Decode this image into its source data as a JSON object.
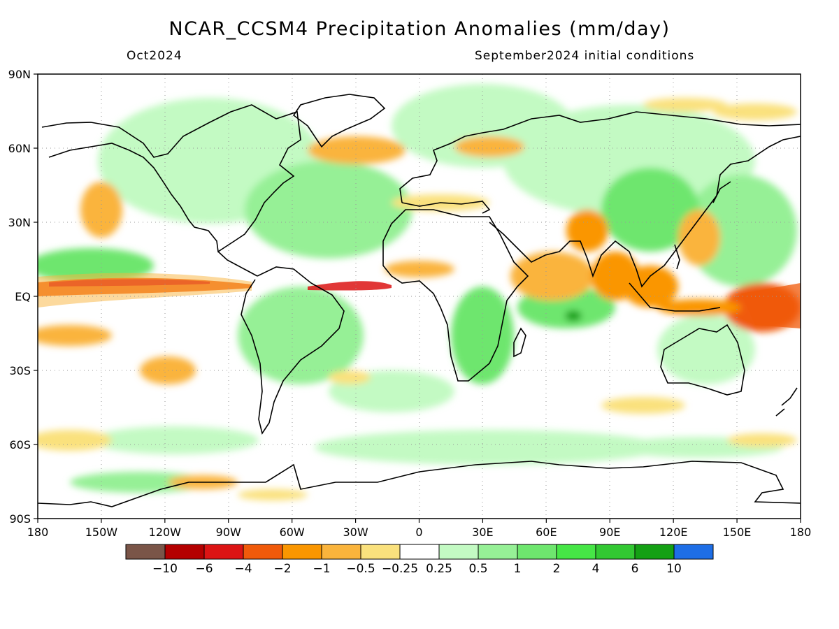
{
  "title": "NCAR_CCSM4 Precipitation Anomalies (mm/day)",
  "valid_month": "Oct2024",
  "init_label": "September2024 initial conditions",
  "map": {
    "lat_labels": [
      "90N",
      "60N",
      "30N",
      "EQ",
      "30S",
      "60S",
      "90S"
    ],
    "lon_labels": [
      "180",
      "150W",
      "120W",
      "90W",
      "60W",
      "30W",
      "0",
      "30E",
      "60E",
      "90E",
      "120E",
      "150E",
      "180"
    ],
    "lat_ticks": [
      90,
      60,
      30,
      0,
      -30,
      -60,
      -90
    ],
    "lon_ticks": [
      -180,
      -150,
      -120,
      -90,
      -60,
      -30,
      0,
      30,
      60,
      90,
      120,
      150,
      180
    ]
  },
  "colorbar": {
    "colors": [
      "#7a5548",
      "#b40000",
      "#dc1414",
      "#f05a0a",
      "#fa9600",
      "#fab43c",
      "#fae17d",
      "#ffffff",
      "#c3fac3",
      "#96f096",
      "#6ee66e",
      "#46e646",
      "#32c832",
      "#14a014",
      "#1e6ee6"
    ],
    "labels": [
      "−10",
      "−6",
      "−4",
      "−2",
      "−1",
      "−0.5",
      "−0.25",
      "0.25",
      "0.5",
      "1",
      "2",
      "4",
      "6",
      "10"
    ]
  }
}
